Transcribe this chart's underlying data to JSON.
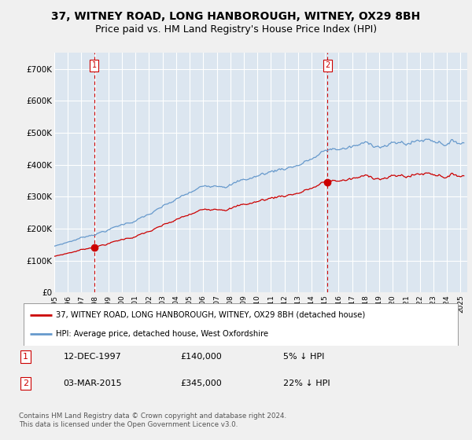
{
  "title": "37, WITNEY ROAD, LONG HANBOROUGH, WITNEY, OX29 8BH",
  "subtitle": "Price paid vs. HM Land Registry's House Price Index (HPI)",
  "background_color": "#f0f0f0",
  "plot_bg_color": "#dce6f0",
  "ylim": [
    0,
    750000
  ],
  "yticks": [
    0,
    100000,
    200000,
    300000,
    400000,
    500000,
    600000,
    700000
  ],
  "ytick_labels": [
    "£0",
    "£100K",
    "£200K",
    "£300K",
    "£400K",
    "£500K",
    "£600K",
    "£700K"
  ],
  "xlim_start": 1995.0,
  "xlim_end": 2025.5,
  "xtick_years": [
    1995,
    1996,
    1997,
    1998,
    1999,
    2000,
    2001,
    2002,
    2003,
    2004,
    2005,
    2006,
    2007,
    2008,
    2009,
    2010,
    2011,
    2012,
    2013,
    2014,
    2015,
    2016,
    2017,
    2018,
    2019,
    2020,
    2021,
    2022,
    2023,
    2024,
    2025
  ],
  "purchase1_x": 1997.95,
  "purchase1_y": 140000,
  "purchase2_x": 2015.17,
  "purchase2_y": 345000,
  "vline1_x": 1997.95,
  "vline2_x": 2015.17,
  "legend_line1": "37, WITNEY ROAD, LONG HANBOROUGH, WITNEY, OX29 8BH (detached house)",
  "legend_line2": "HPI: Average price, detached house, West Oxfordshire",
  "table_row1": [
    "1",
    "12-DEC-1997",
    "£140,000",
    "5% ↓ HPI"
  ],
  "table_row2": [
    "2",
    "03-MAR-2015",
    "£345,000",
    "22% ↓ HPI"
  ],
  "footer": "Contains HM Land Registry data © Crown copyright and database right 2024.\nThis data is licensed under the Open Government Licence v3.0.",
  "red_color": "#cc0000",
  "blue_color": "#6699cc",
  "title_fontsize": 10,
  "subtitle_fontsize": 9
}
